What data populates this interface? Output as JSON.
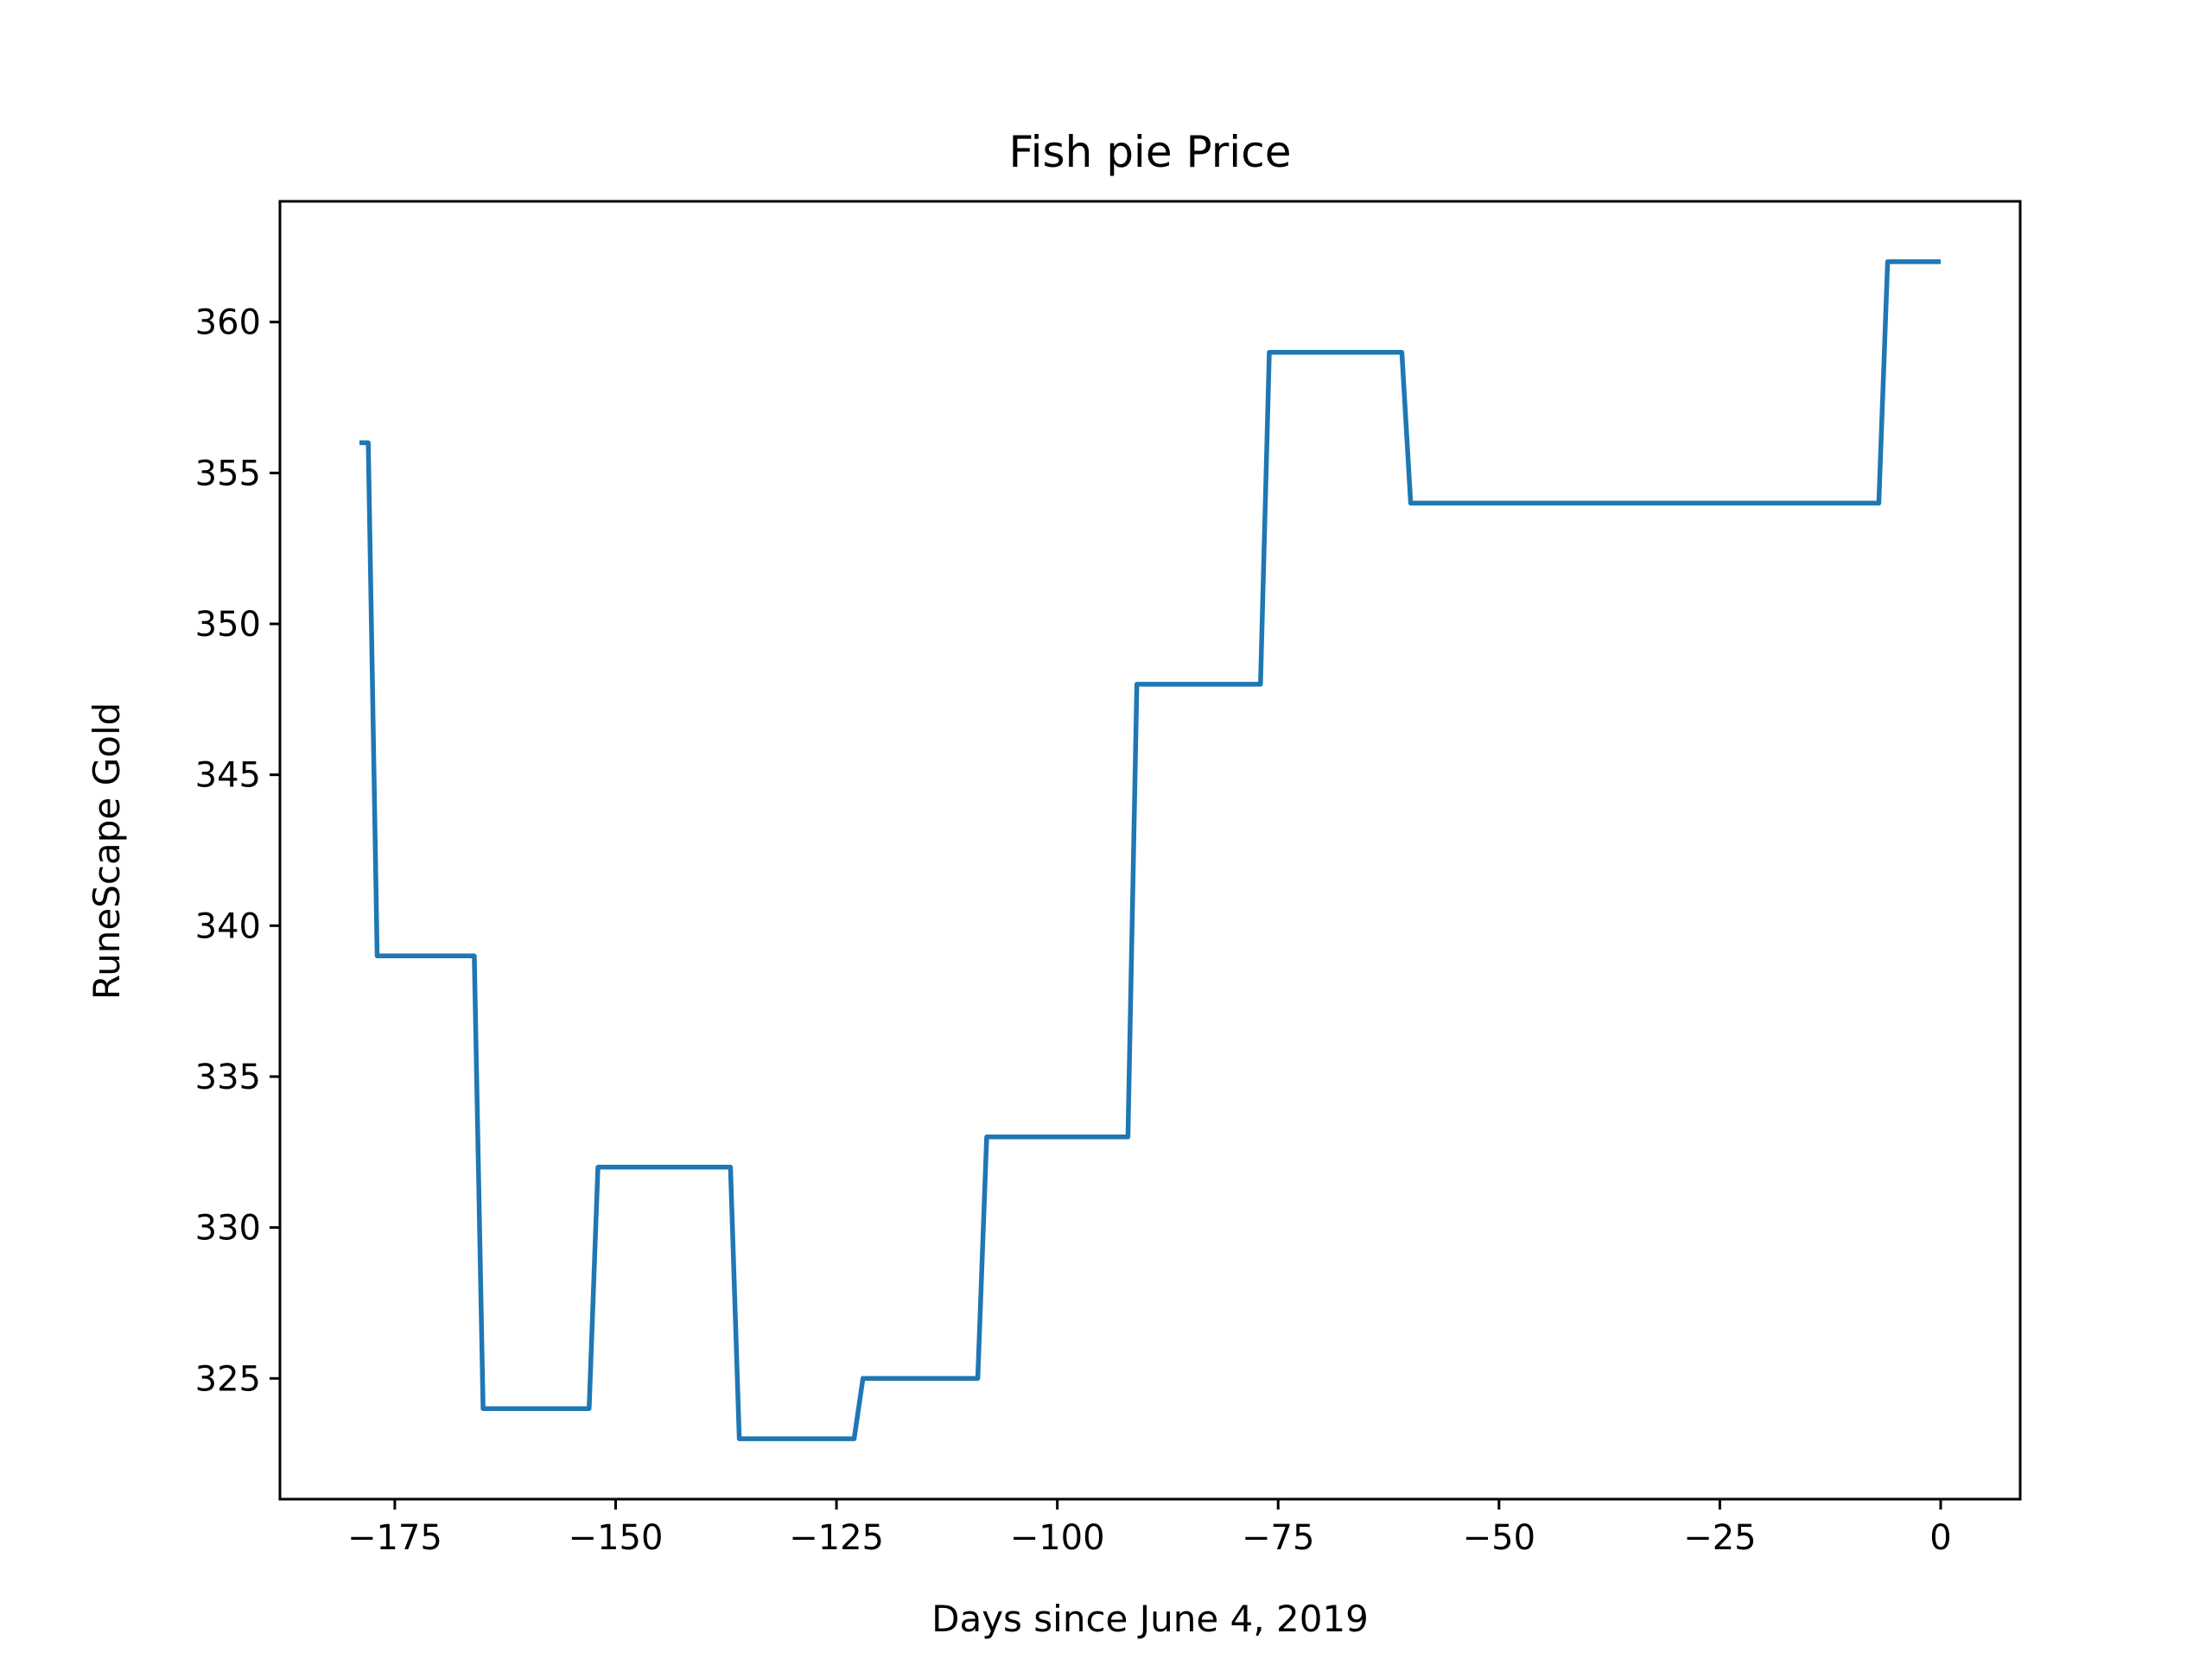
{
  "chart_data": {
    "type": "line",
    "title": "Fish pie Price",
    "xlabel": "Days since June 4, 2019",
    "ylabel": "RuneScape Gold",
    "xlim": [
      -188,
      9
    ],
    "ylim": [
      321,
      364
    ],
    "xticks": [
      -175,
      -150,
      -125,
      -100,
      -75,
      -50,
      -25,
      0
    ],
    "yticks": [
      325,
      330,
      335,
      340,
      345,
      350,
      355,
      360
    ],
    "grid": false,
    "line_color": "#1f77b4",
    "series": [
      {
        "points": [
          [
            -179,
            356
          ],
          [
            -178,
            356
          ],
          [
            -177,
            339
          ],
          [
            -166,
            339
          ],
          [
            -165,
            324
          ],
          [
            -153,
            324
          ],
          [
            -152,
            332
          ],
          [
            -137,
            332
          ],
          [
            -136,
            323
          ],
          [
            -123,
            323
          ],
          [
            -122,
            325
          ],
          [
            -109,
            325
          ],
          [
            -108,
            333
          ],
          [
            -92,
            333
          ],
          [
            -91,
            348
          ],
          [
            -77,
            348
          ],
          [
            -76,
            359
          ],
          [
            -61,
            359
          ],
          [
            -60,
            354
          ],
          [
            -7,
            354
          ],
          [
            -6,
            362
          ],
          [
            0,
            362
          ]
        ]
      }
    ]
  }
}
